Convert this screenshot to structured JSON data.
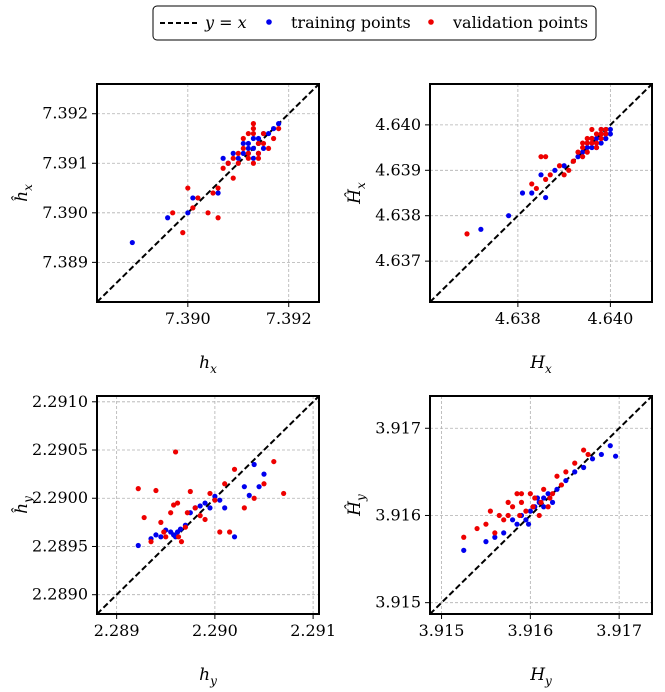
{
  "legend": {
    "items": [
      {
        "label": "y = x",
        "kind": "line",
        "color": "#000000"
      },
      {
        "label": "training points",
        "kind": "dot",
        "color": "#0000ee"
      },
      {
        "label": "validation points",
        "kind": "dot",
        "color": "#ee0000"
      }
    ]
  },
  "colors": {
    "training": "#0000ee",
    "validation": "#ee0000",
    "identity": "#000000",
    "grid": "#b0b0b0"
  },
  "chart_data": [
    {
      "type": "scatter",
      "xlabel": "h_x",
      "ylabel": "ĥ_x",
      "xlim": [
        7.3882,
        7.3926
      ],
      "ylim": [
        7.3882,
        7.3926
      ],
      "xticks": [
        7.39,
        7.392
      ],
      "xtick_labels": [
        "7.390",
        "7.392"
      ],
      "yticks": [
        7.389,
        7.39,
        7.391,
        7.392
      ],
      "ytick_labels": [
        "7.389",
        "7.390",
        "7.391",
        "7.392"
      ],
      "series": [
        {
          "name": "training points",
          "x": [
            7.3889,
            7.3896,
            7.39,
            7.3901,
            7.3906,
            7.3907,
            7.3908,
            7.3909,
            7.391,
            7.3911,
            7.3911,
            7.3912,
            7.3912,
            7.3913,
            7.3913,
            7.3914,
            7.3914,
            7.3915,
            7.3916,
            7.3917,
            7.3918,
            7.3913,
            7.3912,
            7.3914,
            7.3915
          ],
          "y": [
            7.3894,
            7.3899,
            7.39,
            7.3903,
            7.3904,
            7.3911,
            7.391,
            7.3912,
            7.3911,
            7.3912,
            7.3914,
            7.3913,
            7.3912,
            7.3913,
            7.3915,
            7.3914,
            7.3912,
            7.3916,
            7.3916,
            7.3917,
            7.3918,
            7.3911,
            7.3914,
            7.3915,
            7.3913
          ]
        },
        {
          "name": "validation points",
          "x": [
            7.3897,
            7.3899,
            7.39,
            7.3901,
            7.3902,
            7.3904,
            7.3905,
            7.3906,
            7.3906,
            7.3907,
            7.3908,
            7.3909,
            7.391,
            7.391,
            7.3911,
            7.3911,
            7.3912,
            7.3912,
            7.3913,
            7.3913,
            7.3913,
            7.3914,
            7.3914,
            7.3915,
            7.3916,
            7.3917,
            7.3918,
            7.3912,
            7.3914,
            7.3915,
            7.3913,
            7.3909
          ],
          "y": [
            7.39,
            7.3896,
            7.3905,
            7.3901,
            7.3903,
            7.39,
            7.3904,
            7.3899,
            7.3905,
            7.3909,
            7.391,
            7.3911,
            7.391,
            7.3912,
            7.3913,
            7.3915,
            7.3916,
            7.3912,
            7.3917,
            7.3918,
            7.391,
            7.3914,
            7.3912,
            7.3916,
            7.3913,
            7.3915,
            7.3917,
            7.3911,
            7.3911,
            7.3914,
            7.3916,
            7.3907
          ]
        }
      ]
    },
    {
      "type": "scatter",
      "xlabel": "H_x",
      "ylabel": "Ĥ_x",
      "xlim": [
        4.6361,
        4.6409
      ],
      "ylim": [
        4.6361,
        4.6409
      ],
      "xticks": [
        4.638,
        4.64
      ],
      "xtick_labels": [
        "4.638",
        "4.640"
      ],
      "yticks": [
        4.637,
        4.638,
        4.639,
        4.64
      ],
      "ytick_labels": [
        "4.637",
        "4.638",
        "4.639",
        "4.640"
      ],
      "series": [
        {
          "name": "training points",
          "x": [
            4.6372,
            4.6378,
            4.6381,
            4.6383,
            4.6385,
            4.6386,
            4.6388,
            4.639,
            4.6393,
            4.6394,
            4.6395,
            4.6396,
            4.6397,
            4.6397,
            4.6398,
            4.6398,
            4.6399,
            4.6399,
            4.64,
            4.64,
            4.6396,
            4.6395,
            4.6398,
            4.6397,
            4.6399
          ],
          "y": [
            4.6377,
            4.638,
            4.6385,
            4.6385,
            4.6389,
            4.6384,
            4.639,
            4.6391,
            4.6393,
            4.6394,
            4.6395,
            4.6395,
            4.6397,
            4.6396,
            4.6398,
            4.6396,
            4.6398,
            4.6397,
            4.6399,
            4.6398,
            4.6397,
            4.6396,
            4.6399,
            4.6395,
            4.6397
          ]
        },
        {
          "name": "validation points",
          "x": [
            4.6369,
            4.6383,
            4.6384,
            4.6385,
            4.6386,
            4.6386,
            4.6387,
            4.6389,
            4.639,
            4.6391,
            4.6392,
            4.6393,
            4.6394,
            4.6394,
            4.6395,
            4.6395,
            4.6396,
            4.6396,
            4.6397,
            4.6397,
            4.6398,
            4.6398,
            4.6399,
            4.6399,
            4.6396,
            4.6395,
            4.6397,
            4.6398,
            4.6394,
            4.6392
          ],
          "y": [
            4.6376,
            4.6387,
            4.6386,
            4.6393,
            4.6388,
            4.6393,
            4.6389,
            4.6391,
            4.6389,
            4.639,
            4.6392,
            4.6394,
            4.6396,
            4.6393,
            4.6396,
            4.6394,
            4.6399,
            4.6397,
            4.6398,
            4.6396,
            4.6399,
            4.6397,
            4.6398,
            4.6399,
            4.6396,
            4.6397,
            4.6395,
            4.6398,
            4.6395,
            4.6392
          ]
        }
      ]
    },
    {
      "type": "scatter",
      "xlabel": "h_y",
      "ylabel": "ĥ_y",
      "xlim": [
        2.2888,
        2.29106
      ],
      "ylim": [
        2.2888,
        2.29106
      ],
      "xticks": [
        2.289,
        2.29,
        2.291
      ],
      "xtick_labels": [
        "2.289",
        "2.290",
        "2.291"
      ],
      "yticks": [
        2.289,
        2.2895,
        2.29,
        2.2905,
        2.291
      ],
      "ytick_labels": [
        "2.2890",
        "2.2895",
        "2.2900",
        "2.2905",
        "2.2910"
      ],
      "series": [
        {
          "name": "training points",
          "x": [
            2.28922,
            2.28935,
            2.2894,
            2.28945,
            2.2895,
            2.28955,
            2.28958,
            2.2896,
            2.28962,
            2.28965,
            2.2897,
            2.28975,
            2.2898,
            2.28985,
            2.2899,
            2.28995,
            2.29,
            2.29005,
            2.2901,
            2.2902,
            2.2903,
            2.29035,
            2.2904,
            2.29045,
            2.2905
          ],
          "y": [
            2.28951,
            2.28958,
            2.28962,
            2.2896,
            2.28967,
            2.28965,
            2.28962,
            2.2896,
            2.28965,
            2.28968,
            2.28972,
            2.28985,
            2.2899,
            2.28992,
            2.28995,
            2.2899,
            2.29002,
            2.28998,
            2.2899,
            2.2896,
            2.29012,
            2.29003,
            2.29035,
            2.29012,
            2.29025
          ]
        },
        {
          "name": "validation points",
          "x": [
            2.28922,
            2.28928,
            2.28935,
            2.2894,
            2.28945,
            2.2895,
            2.28955,
            2.28958,
            2.2896,
            2.28963,
            2.28966,
            2.2897,
            2.28975,
            2.2898,
            2.28985,
            2.2899,
            2.28995,
            2.29,
            2.29005,
            2.2901,
            2.29015,
            2.2902,
            2.2903,
            2.2904,
            2.2905,
            2.2906,
            2.2907,
            2.28962,
            2.28948,
            2.28972
          ],
          "y": [
            2.2901,
            2.2898,
            2.28955,
            2.29008,
            2.28975,
            2.2896,
            2.28985,
            2.28993,
            2.29048,
            2.2896,
            2.28955,
            2.2897,
            2.29007,
            2.2899,
            2.28982,
            2.28978,
            2.29005,
            2.28998,
            2.28965,
            2.29015,
            2.28965,
            2.2903,
            2.2899,
            2.29,
            2.29015,
            2.29038,
            2.29005,
            2.28995,
            2.28965,
            2.28985
          ]
        }
      ]
    },
    {
      "type": "scatter",
      "xlabel": "H_y",
      "ylabel": "Ĥ_y",
      "xlim": [
        3.91487,
        3.91737
      ],
      "ylim": [
        3.91487,
        3.91737
      ],
      "xticks": [
        3.915,
        3.916,
        3.917
      ],
      "xtick_labels": [
        "3.915",
        "3.916",
        "3.917"
      ],
      "yticks": [
        3.915,
        3.916,
        3.917
      ],
      "ytick_labels": [
        "3.915",
        "3.916",
        "3.917"
      ],
      "series": [
        {
          "name": "training points",
          "x": [
            3.91525,
            3.9155,
            3.9156,
            3.9157,
            3.9158,
            3.91585,
            3.9159,
            3.91595,
            3.916,
            3.91605,
            3.9161,
            3.91615,
            3.9162,
            3.91625,
            3.9163,
            3.9164,
            3.9165,
            3.9166,
            3.9167,
            3.9168,
            3.9169,
            3.91696,
            3.91615,
            3.91608,
            3.91598
          ],
          "y": [
            3.9156,
            3.9157,
            3.91575,
            3.9158,
            3.91595,
            3.9159,
            3.916,
            3.91595,
            3.91605,
            3.9161,
            3.91615,
            3.9162,
            3.91625,
            3.91615,
            3.9163,
            3.9164,
            3.9165,
            3.91655,
            3.91665,
            3.9167,
            3.9168,
            3.91668,
            3.9161,
            3.9162,
            3.9159
          ]
        },
        {
          "name": "validation points",
          "x": [
            3.91525,
            3.9154,
            3.9155,
            3.91555,
            3.9156,
            3.91565,
            3.9157,
            3.91575,
            3.9158,
            3.91585,
            3.91588,
            3.9159,
            3.91595,
            3.916,
            3.91603,
            3.91605,
            3.9161,
            3.91615,
            3.9162,
            3.91625,
            3.9163,
            3.91635,
            3.9164,
            3.9165,
            3.9166,
            3.91665,
            3.91575,
            3.9159,
            3.91612,
            3.91622
          ],
          "y": [
            3.91575,
            3.91585,
            3.9159,
            3.91605,
            3.9158,
            3.916,
            3.91595,
            3.91615,
            3.9161,
            3.91625,
            3.916,
            3.91625,
            3.91605,
            3.91625,
            3.9161,
            3.9162,
            3.916,
            3.9163,
            3.9161,
            3.91625,
            3.91645,
            3.91635,
            3.9165,
            3.9166,
            3.91675,
            3.9167,
            3.916,
            3.91615,
            3.91615,
            3.9162
          ]
        }
      ]
    }
  ]
}
